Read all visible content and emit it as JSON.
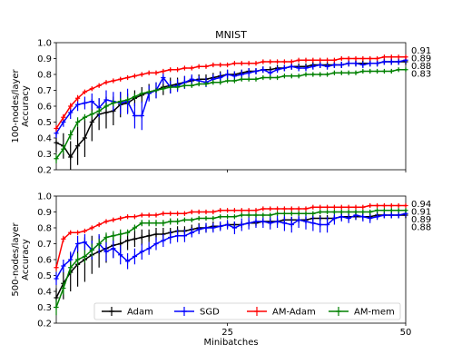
{
  "colors": {
    "adam": "#000000",
    "sgd": "#0000ff",
    "am_adam": "#ff0000",
    "am_mem": "#008000"
  },
  "legend": [
    "Adam",
    "SGD",
    "AM-Adam",
    "AM-mem"
  ],
  "chart_data": [
    {
      "type": "line",
      "title": "MNIST",
      "xlabel": "",
      "ylabel": "100-nodes/layer\nAccuracy",
      "xlim": [
        1,
        50
      ],
      "ylim": [
        0.2,
        1.0
      ],
      "yticks": [
        "0.2",
        "0.3",
        "0.4",
        "0.5",
        "0.6",
        "0.7",
        "0.8",
        "0.9",
        "1.0"
      ],
      "xticks": [
        {
          "value": 25,
          "label": ""
        },
        {
          "value": 50,
          "label": ""
        }
      ],
      "grid": false,
      "final_labels": [
        {
          "series": "am_adam",
          "text": "0.91",
          "y": 0.91
        },
        {
          "series": "sgd",
          "text": "0.89",
          "y": 0.89
        },
        {
          "series": "adam",
          "text": "0.88",
          "y": 0.88
        },
        {
          "series": "am_mem",
          "text": "0.83",
          "y": 0.83
        }
      ],
      "x": [
        1,
        2,
        3,
        4,
        5,
        6,
        7,
        8,
        9,
        10,
        11,
        12,
        13,
        14,
        15,
        16,
        17,
        18,
        19,
        20,
        21,
        22,
        23,
        24,
        25,
        26,
        27,
        28,
        29,
        30,
        31,
        32,
        33,
        34,
        35,
        36,
        37,
        38,
        39,
        40,
        41,
        42,
        43,
        44,
        45,
        46,
        47,
        48,
        49,
        50
      ],
      "series": [
        {
          "key": "adam",
          "name": "Adam",
          "values": [
            0.37,
            0.35,
            0.28,
            0.35,
            0.4,
            0.5,
            0.55,
            0.56,
            0.57,
            0.61,
            0.62,
            0.65,
            0.67,
            0.69,
            0.7,
            0.72,
            0.73,
            0.74,
            0.75,
            0.76,
            0.77,
            0.77,
            0.78,
            0.79,
            0.8,
            0.8,
            0.81,
            0.82,
            0.82,
            0.83,
            0.83,
            0.84,
            0.84,
            0.85,
            0.85,
            0.85,
            0.86,
            0.86,
            0.86,
            0.86,
            0.86,
            0.87,
            0.87,
            0.87,
            0.87,
            0.87,
            0.88,
            0.88,
            0.88,
            0.88
          ],
          "errors": [
            0.06,
            0.08,
            0.1,
            0.12,
            0.12,
            0.12,
            0.1,
            0.1,
            0.09,
            0.08,
            0.06,
            0.05,
            0.05,
            0.05,
            0.05,
            0.05,
            0.05,
            0.04,
            0.04,
            0.03,
            0.03,
            0.03,
            0.03,
            0.03,
            0.03,
            0.02,
            0.02,
            0.02,
            0.02,
            0.02,
            0.02,
            0.02,
            0.02,
            0.02,
            0.02,
            0.02,
            0.02,
            0.02,
            0.02,
            0.02,
            0.02,
            0.02,
            0.02,
            0.02,
            0.02,
            0.02,
            0.02,
            0.02,
            0.02,
            0.02
          ]
        },
        {
          "key": "sgd",
          "name": "SGD",
          "values": [
            0.43,
            0.5,
            0.56,
            0.61,
            0.62,
            0.63,
            0.59,
            0.64,
            0.63,
            0.62,
            0.63,
            0.54,
            0.54,
            0.68,
            0.7,
            0.78,
            0.72,
            0.73,
            0.75,
            0.77,
            0.76,
            0.75,
            0.77,
            0.78,
            0.8,
            0.79,
            0.8,
            0.81,
            0.82,
            0.83,
            0.81,
            0.83,
            0.84,
            0.85,
            0.84,
            0.84,
            0.85,
            0.86,
            0.85,
            0.86,
            0.86,
            0.87,
            0.87,
            0.86,
            0.87,
            0.87,
            0.88,
            0.88,
            0.88,
            0.89
          ],
          "errors": [
            0.03,
            0.03,
            0.04,
            0.04,
            0.04,
            0.05,
            0.06,
            0.06,
            0.06,
            0.07,
            0.08,
            0.08,
            0.09,
            0.05,
            0.05,
            0.04,
            0.04,
            0.04,
            0.04,
            0.03,
            0.03,
            0.03,
            0.03,
            0.03,
            0.03,
            0.03,
            0.03,
            0.03,
            0.02,
            0.02,
            0.02,
            0.02,
            0.02,
            0.02,
            0.02,
            0.02,
            0.02,
            0.02,
            0.02,
            0.02,
            0.02,
            0.02,
            0.02,
            0.02,
            0.02,
            0.02,
            0.02,
            0.02,
            0.02,
            0.02
          ]
        },
        {
          "key": "am_adam",
          "name": "AM-Adam",
          "values": [
            0.46,
            0.53,
            0.6,
            0.65,
            0.69,
            0.71,
            0.73,
            0.75,
            0.76,
            0.77,
            0.78,
            0.79,
            0.8,
            0.81,
            0.81,
            0.82,
            0.83,
            0.83,
            0.84,
            0.84,
            0.85,
            0.85,
            0.86,
            0.86,
            0.86,
            0.87,
            0.87,
            0.87,
            0.87,
            0.88,
            0.88,
            0.88,
            0.88,
            0.88,
            0.89,
            0.89,
            0.89,
            0.89,
            0.89,
            0.89,
            0.9,
            0.9,
            0.9,
            0.9,
            0.9,
            0.9,
            0.91,
            0.91,
            0.91,
            0.91
          ],
          "errors": [
            0.02,
            0.02,
            0.02,
            0.02,
            0.01,
            0.01,
            0.01,
            0.01,
            0.01,
            0.01,
            0.01,
            0.01,
            0.01,
            0.01,
            0.01,
            0.01,
            0.01,
            0.01,
            0.01,
            0.01,
            0.01,
            0.01,
            0.01,
            0.01,
            0.01,
            0.01,
            0.01,
            0.01,
            0.01,
            0.01,
            0.01,
            0.01,
            0.01,
            0.01,
            0.01,
            0.01,
            0.01,
            0.01,
            0.01,
            0.01,
            0.01,
            0.01,
            0.01,
            0.01,
            0.01,
            0.01,
            0.01,
            0.01,
            0.01,
            0.01
          ]
        },
        {
          "key": "am_mem",
          "name": "AM-mem",
          "values": [
            0.27,
            0.33,
            0.42,
            0.5,
            0.53,
            0.55,
            0.57,
            0.6,
            0.62,
            0.63,
            0.64,
            0.66,
            0.68,
            0.69,
            0.7,
            0.71,
            0.72,
            0.72,
            0.73,
            0.73,
            0.74,
            0.74,
            0.75,
            0.75,
            0.76,
            0.76,
            0.77,
            0.77,
            0.77,
            0.78,
            0.78,
            0.78,
            0.79,
            0.79,
            0.79,
            0.8,
            0.8,
            0.8,
            0.8,
            0.81,
            0.81,
            0.81,
            0.81,
            0.82,
            0.82,
            0.82,
            0.82,
            0.82,
            0.83,
            0.83
          ],
          "errors": [
            0.03,
            0.03,
            0.03,
            0.03,
            0.02,
            0.02,
            0.02,
            0.02,
            0.02,
            0.02,
            0.02,
            0.02,
            0.01,
            0.01,
            0.01,
            0.01,
            0.01,
            0.01,
            0.01,
            0.01,
            0.01,
            0.01,
            0.01,
            0.01,
            0.01,
            0.01,
            0.01,
            0.01,
            0.01,
            0.01,
            0.01,
            0.01,
            0.01,
            0.01,
            0.01,
            0.01,
            0.01,
            0.01,
            0.01,
            0.01,
            0.01,
            0.01,
            0.01,
            0.01,
            0.01,
            0.01,
            0.01,
            0.01,
            0.01,
            0.01
          ]
        }
      ]
    },
    {
      "type": "line",
      "title": "",
      "xlabel": "Minibatches",
      "ylabel": "500-nodes/layer\nAccuracy",
      "xlim": [
        1,
        50
      ],
      "ylim": [
        0.2,
        1.0
      ],
      "yticks": [
        "0.2",
        "0.3",
        "0.4",
        "0.5",
        "0.6",
        "0.7",
        "0.8",
        "0.9",
        "1.0"
      ],
      "xticks": [
        {
          "value": 25,
          "label": "25"
        },
        {
          "value": 50,
          "label": "50"
        }
      ],
      "grid": false,
      "legend_position": "lower-right",
      "final_labels": [
        {
          "series": "am_adam",
          "text": "0.94",
          "y": 0.94
        },
        {
          "series": "am_mem",
          "text": "0.91",
          "y": 0.91
        },
        {
          "series": "sgd",
          "text": "0.89",
          "y": 0.89
        },
        {
          "series": "adam",
          "text": "0.88",
          "y": 0.88
        }
      ],
      "x": [
        1,
        2,
        3,
        4,
        5,
        6,
        7,
        8,
        9,
        10,
        11,
        12,
        13,
        14,
        15,
        16,
        17,
        18,
        19,
        20,
        21,
        22,
        23,
        24,
        25,
        26,
        27,
        28,
        29,
        30,
        31,
        32,
        33,
        34,
        35,
        36,
        37,
        38,
        39,
        40,
        41,
        42,
        43,
        44,
        45,
        46,
        47,
        48,
        49,
        50
      ],
      "series": [
        {
          "key": "adam",
          "name": "Adam",
          "values": [
            0.36,
            0.45,
            0.52,
            0.57,
            0.6,
            0.63,
            0.65,
            0.67,
            0.69,
            0.7,
            0.72,
            0.73,
            0.74,
            0.75,
            0.76,
            0.76,
            0.77,
            0.78,
            0.78,
            0.79,
            0.8,
            0.8,
            0.81,
            0.81,
            0.82,
            0.82,
            0.82,
            0.83,
            0.83,
            0.84,
            0.84,
            0.84,
            0.85,
            0.85,
            0.85,
            0.85,
            0.86,
            0.86,
            0.86,
            0.86,
            0.87,
            0.87,
            0.87,
            0.87,
            0.87,
            0.88,
            0.88,
            0.88,
            0.88,
            0.88
          ],
          "errors": [
            0.06,
            0.1,
            0.12,
            0.14,
            0.14,
            0.12,
            0.1,
            0.09,
            0.08,
            0.07,
            0.06,
            0.05,
            0.05,
            0.04,
            0.04,
            0.04,
            0.03,
            0.03,
            0.03,
            0.03,
            0.03,
            0.03,
            0.03,
            0.02,
            0.02,
            0.02,
            0.02,
            0.02,
            0.02,
            0.02,
            0.02,
            0.02,
            0.02,
            0.02,
            0.02,
            0.02,
            0.02,
            0.02,
            0.02,
            0.02,
            0.02,
            0.02,
            0.02,
            0.02,
            0.02,
            0.02,
            0.02,
            0.02,
            0.02,
            0.02
          ]
        },
        {
          "key": "sgd",
          "name": "SGD",
          "values": [
            0.48,
            0.56,
            0.6,
            0.7,
            0.71,
            0.66,
            0.7,
            0.65,
            0.67,
            0.63,
            0.59,
            0.62,
            0.65,
            0.67,
            0.7,
            0.72,
            0.74,
            0.75,
            0.75,
            0.77,
            0.79,
            0.8,
            0.8,
            0.81,
            0.82,
            0.8,
            0.82,
            0.83,
            0.84,
            0.84,
            0.83,
            0.84,
            0.83,
            0.82,
            0.85,
            0.84,
            0.83,
            0.82,
            0.82,
            0.86,
            0.87,
            0.86,
            0.88,
            0.87,
            0.86,
            0.87,
            0.88,
            0.88,
            0.88,
            0.89
          ],
          "errors": [
            0.04,
            0.04,
            0.05,
            0.05,
            0.05,
            0.06,
            0.06,
            0.06,
            0.06,
            0.06,
            0.05,
            0.05,
            0.05,
            0.04,
            0.04,
            0.04,
            0.04,
            0.04,
            0.04,
            0.03,
            0.03,
            0.03,
            0.03,
            0.03,
            0.03,
            0.04,
            0.04,
            0.04,
            0.04,
            0.04,
            0.04,
            0.04,
            0.05,
            0.05,
            0.05,
            0.05,
            0.05,
            0.05,
            0.05,
            0.04,
            0.03,
            0.03,
            0.03,
            0.03,
            0.03,
            0.02,
            0.02,
            0.02,
            0.02,
            0.02
          ]
        },
        {
          "key": "am_adam",
          "name": "AM-Adam",
          "values": [
            0.55,
            0.73,
            0.77,
            0.77,
            0.78,
            0.8,
            0.82,
            0.84,
            0.85,
            0.86,
            0.87,
            0.87,
            0.88,
            0.88,
            0.88,
            0.89,
            0.89,
            0.89,
            0.89,
            0.9,
            0.9,
            0.9,
            0.9,
            0.91,
            0.91,
            0.91,
            0.91,
            0.91,
            0.91,
            0.92,
            0.92,
            0.92,
            0.92,
            0.92,
            0.92,
            0.92,
            0.93,
            0.93,
            0.93,
            0.93,
            0.93,
            0.93,
            0.93,
            0.93,
            0.94,
            0.94,
            0.94,
            0.94,
            0.94,
            0.94
          ],
          "errors": [
            0.02,
            0.02,
            0.01,
            0.01,
            0.01,
            0.01,
            0.01,
            0.01,
            0.01,
            0.01,
            0.01,
            0.01,
            0.01,
            0.01,
            0.01,
            0.01,
            0.01,
            0.01,
            0.01,
            0.01,
            0.01,
            0.01,
            0.01,
            0.01,
            0.01,
            0.01,
            0.01,
            0.01,
            0.01,
            0.01,
            0.01,
            0.01,
            0.01,
            0.01,
            0.01,
            0.01,
            0.01,
            0.01,
            0.01,
            0.01,
            0.01,
            0.01,
            0.01,
            0.01,
            0.01,
            0.01,
            0.01,
            0.01,
            0.01,
            0.01
          ]
        },
        {
          "key": "am_mem",
          "name": "AM-mem",
          "values": [
            0.3,
            0.42,
            0.55,
            0.6,
            0.62,
            0.66,
            0.7,
            0.74,
            0.75,
            0.76,
            0.77,
            0.8,
            0.83,
            0.83,
            0.83,
            0.83,
            0.84,
            0.84,
            0.85,
            0.85,
            0.86,
            0.86,
            0.86,
            0.87,
            0.87,
            0.87,
            0.88,
            0.88,
            0.88,
            0.88,
            0.88,
            0.89,
            0.89,
            0.89,
            0.89,
            0.89,
            0.89,
            0.9,
            0.9,
            0.9,
            0.9,
            0.9,
            0.9,
            0.9,
            0.9,
            0.91,
            0.91,
            0.91,
            0.91,
            0.91
          ],
          "errors": [
            0.05,
            0.04,
            0.04,
            0.04,
            0.04,
            0.04,
            0.03,
            0.03,
            0.03,
            0.03,
            0.02,
            0.02,
            0.02,
            0.02,
            0.02,
            0.02,
            0.02,
            0.02,
            0.01,
            0.01,
            0.01,
            0.01,
            0.01,
            0.01,
            0.01,
            0.01,
            0.01,
            0.01,
            0.01,
            0.01,
            0.01,
            0.01,
            0.01,
            0.01,
            0.01,
            0.01,
            0.01,
            0.01,
            0.01,
            0.01,
            0.01,
            0.01,
            0.01,
            0.01,
            0.01,
            0.01,
            0.01,
            0.01,
            0.01,
            0.01
          ]
        }
      ]
    }
  ]
}
